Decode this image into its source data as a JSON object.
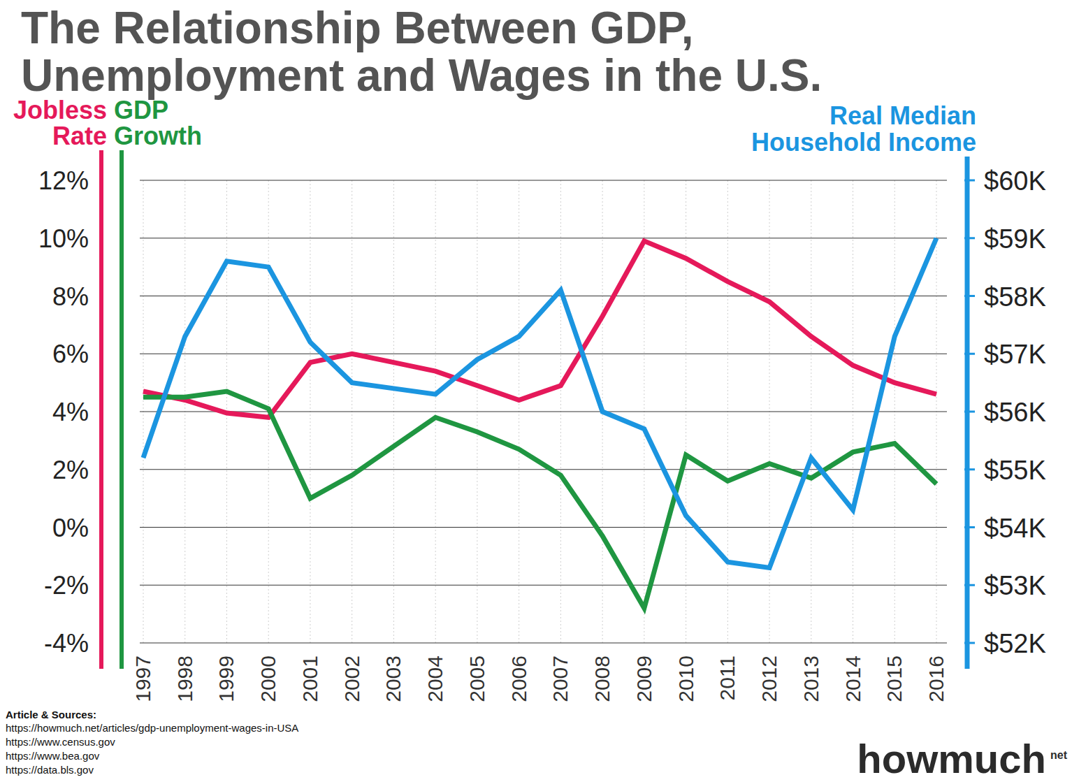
{
  "chart_data": {
    "type": "line",
    "title": "The Relationship Between GDP, Unemployment and Wages in the U.S.",
    "categories": [
      "1997",
      "1998",
      "1999",
      "2000",
      "2001",
      "2002",
      "2003",
      "2004",
      "2005",
      "2006",
      "2007",
      "2008",
      "2009",
      "2010",
      "2011",
      "2012",
      "2013",
      "2014",
      "2015",
      "2016"
    ],
    "series": [
      {
        "name": "Jobless Rate",
        "color": "#e5195a",
        "values": [
          4.7,
          4.4,
          3.95,
          3.8,
          5.7,
          6.0,
          5.7,
          5.4,
          4.9,
          4.4,
          4.9,
          7.3,
          9.9,
          9.3,
          8.5,
          7.8,
          6.6,
          5.6,
          5.0,
          4.6
        ]
      },
      {
        "name": "GDP Growth",
        "color": "#1f9641",
        "values": [
          4.5,
          4.5,
          4.7,
          4.1,
          1.0,
          1.8,
          2.8,
          3.8,
          3.3,
          2.7,
          1.8,
          -0.3,
          -2.8,
          2.5,
          1.6,
          2.2,
          1.7,
          2.6,
          2.9,
          1.5
        ]
      },
      {
        "name": "Real Median Household Income",
        "color": "#1b95e0",
        "axis": "y2",
        "values": [
          55200,
          57300,
          58600,
          58500,
          57200,
          56500,
          56400,
          56300,
          56900,
          57300,
          58100,
          56000,
          55700,
          54200,
          53400,
          53300,
          55200,
          54300,
          57300,
          59000
        ]
      }
    ],
    "ylim": [
      -4,
      12
    ],
    "yticks": [
      {
        "value": -4,
        "label": "-4%"
      },
      {
        "value": -2,
        "label": "-2%"
      },
      {
        "value": 0,
        "label": "0%"
      },
      {
        "value": 2,
        "label": "2%"
      },
      {
        "value": 4,
        "label": "4%"
      },
      {
        "value": 6,
        "label": "6%"
      },
      {
        "value": 8,
        "label": "8%"
      },
      {
        "value": 10,
        "label": "10%"
      },
      {
        "value": 12,
        "label": "12%"
      }
    ],
    "y2lim": [
      52000,
      60000
    ],
    "y2ticks": [
      {
        "value": 52000,
        "label": "$52K"
      },
      {
        "value": 53000,
        "label": "$53K"
      },
      {
        "value": 54000,
        "label": "$54K"
      },
      {
        "value": 55000,
        "label": "$55K"
      },
      {
        "value": 56000,
        "label": "$56K"
      },
      {
        "value": 57000,
        "label": "$57K"
      },
      {
        "value": 58000,
        "label": "$58K"
      },
      {
        "value": 59000,
        "label": "$59K"
      },
      {
        "value": 60000,
        "label": "$60K"
      }
    ],
    "grid": true,
    "footer": {
      "heading": "Article & Sources:",
      "sources": [
        "https://howmuch.net/articles/gdp-unemployment-wages-in-USA",
        "https://www.census.gov",
        "https://www.bea.gov",
        "https://data.bls.gov"
      ],
      "logo": "howmuch",
      "logo_suffix": "net"
    }
  }
}
